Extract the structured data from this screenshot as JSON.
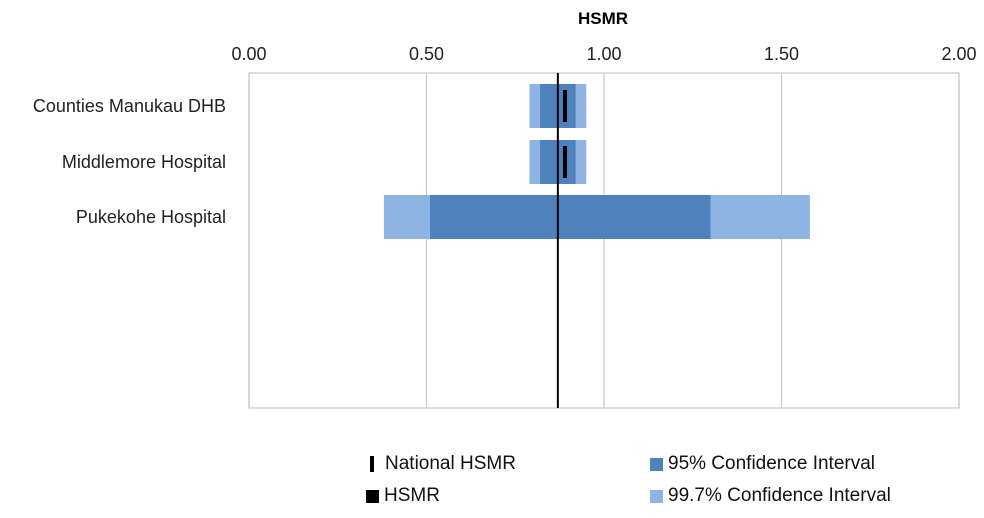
{
  "chart_data": {
    "type": "bar",
    "subtype": "range-forest",
    "title": "HSMR",
    "xlim": [
      0,
      2
    ],
    "xticks": [
      "0.00",
      "0.50",
      "1.00",
      "1.50",
      "2.00"
    ],
    "xtick_values": [
      0,
      0.5,
      1,
      1.5,
      2
    ],
    "grid": "vertical",
    "national_hsmr": 0.87,
    "categories": [
      "Counties Manukau DHB",
      "Middlemore Hospital",
      "Pukekohe Hospital"
    ],
    "series": [
      {
        "name": "99.7% Confidence Interval",
        "color": "#8EB4E3",
        "ranges": [
          [
            0.79,
            0.95
          ],
          [
            0.79,
            0.95
          ],
          [
            0.38,
            1.58
          ]
        ]
      },
      {
        "name": "95% Confidence Interval",
        "color": "#4F81BD",
        "ranges": [
          [
            0.82,
            0.92
          ],
          [
            0.82,
            0.92
          ],
          [
            0.51,
            1.3
          ]
        ]
      },
      {
        "name": "HSMR",
        "color": "#000000",
        "values": [
          0.89,
          0.89,
          null
        ]
      }
    ],
    "legend": {
      "position": "bottom",
      "items": [
        {
          "label": "National HSMR",
          "marker": "line"
        },
        {
          "label": "95% Confidence Interval",
          "marker": "square",
          "color": "#4F81BD"
        },
        {
          "label": "HSMR",
          "marker": "square",
          "color": "#000000"
        },
        {
          "label": "99.7% Confidence Interval",
          "marker": "square",
          "color": "#8EB4E3"
        }
      ]
    }
  }
}
